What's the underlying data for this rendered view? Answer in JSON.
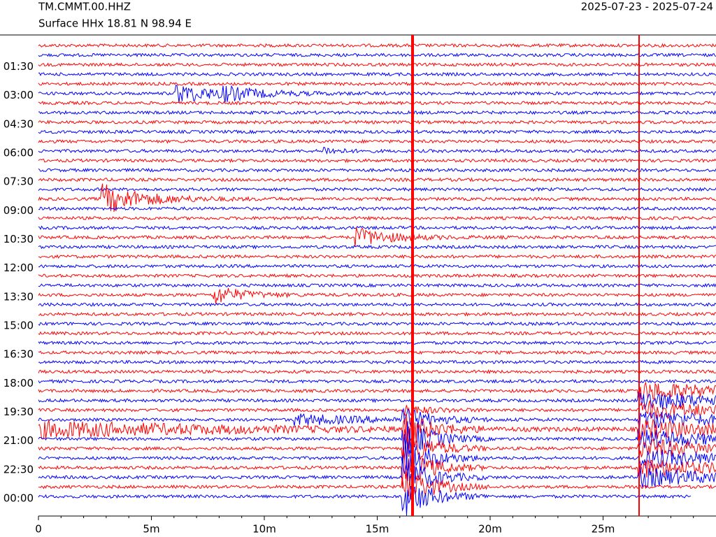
{
  "chart_data": {
    "type": "helicorder",
    "title": "TM.CMMT.00.HHZ",
    "subtitle": "Surface HHx  18.81 N 98.94 E",
    "date_range": "2025-07-23 - 2025-07-24",
    "categories": [
      null,
      null,
      "01:30",
      null,
      null,
      "03:00",
      null,
      null,
      "04:30",
      null,
      null,
      "06:00",
      null,
      null,
      "07:30",
      null,
      null,
      "09:00",
      null,
      null,
      "10:30",
      null,
      null,
      "12:00",
      null,
      null,
      "13:30",
      null,
      null,
      "15:00",
      null,
      null,
      "16:30",
      null,
      null,
      "18:00",
      null,
      null,
      "19:30",
      null,
      null,
      "21:00",
      null,
      null,
      "22:30",
      null,
      null,
      "00:00"
    ],
    "colors": [
      "#ff0000",
      "#0000ff"
    ],
    "xlim": [
      0,
      30
    ],
    "xticks": [
      0,
      {
        "value": 5,
        "label": "5m"
      },
      {
        "value": 10,
        "label": "10m"
      },
      {
        "value": 15,
        "label": "15m"
      },
      {
        "value": 20,
        "label": "20m"
      },
      {
        "value": 25,
        "label": "25m"
      }
    ],
    "minor_xticks": [
      1,
      2,
      3,
      4,
      6,
      7,
      8,
      9,
      11,
      12,
      13,
      14,
      16,
      17,
      18,
      19,
      21,
      22,
      23,
      24,
      26,
      27,
      28,
      29
    ]
  }
}
